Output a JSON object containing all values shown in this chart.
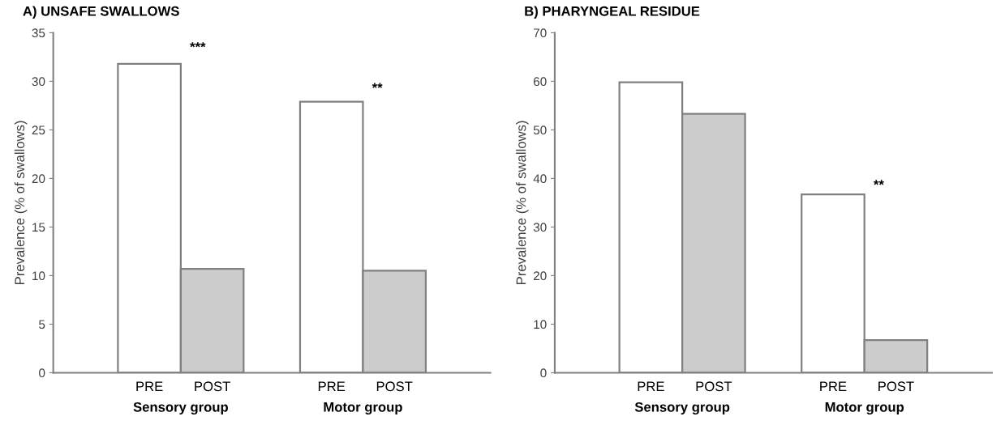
{
  "chart_data": [
    {
      "type": "bar",
      "title": "A) UNSAFE SWALLOWS",
      "ylabel": "Prevalence (% of swallows)",
      "categories": [
        "Sensory group",
        "Motor group"
      ],
      "series": [
        {
          "name": "PRE",
          "color": "#ffffff",
          "values": [
            31.8,
            27.9
          ]
        },
        {
          "name": "POST",
          "color": "#cccccc",
          "values": [
            10.7,
            10.5
          ]
        }
      ],
      "ylim": [
        0,
        35
      ],
      "yticks": [
        0,
        5,
        10,
        15,
        20,
        25,
        30,
        35
      ],
      "grid": false,
      "legend": false,
      "annotations": [
        "***",
        "**"
      ]
    },
    {
      "type": "bar",
      "title": "B) PHARYNGEAL RESIDUE",
      "ylabel": "Prevalence (% of swallows)",
      "categories": [
        "Sensory group",
        "Motor group"
      ],
      "series": [
        {
          "name": "PRE",
          "color": "#ffffff",
          "values": [
            59.8,
            36.7
          ]
        },
        {
          "name": "POST",
          "color": "#cccccc",
          "values": [
            53.3,
            6.7
          ]
        }
      ],
      "ylim": [
        0,
        70
      ],
      "yticks": [
        0,
        10,
        20,
        30,
        40,
        50,
        60,
        70
      ],
      "grid": false,
      "legend": false,
      "annotations": [
        "**"
      ]
    }
  ]
}
